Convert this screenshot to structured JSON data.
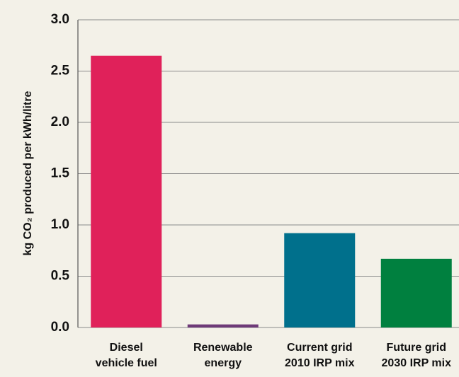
{
  "chart_data": {
    "type": "bar",
    "y_label": "kg CO₂ produced per kWh/litre",
    "categories": [
      [
        "Diesel",
        "vehicle fuel"
      ],
      [
        "Renewable",
        "energy"
      ],
      [
        "Current grid",
        "2010 IRP mix"
      ],
      [
        "Future grid",
        "2030 IRP mix"
      ]
    ],
    "values": [
      2.65,
      0.03,
      0.92,
      0.67
    ],
    "colors": [
      "#e0215a",
      "#6e3a78",
      "#00708c",
      "#00803f"
    ],
    "ylim": [
      0,
      3
    ],
    "yticks": [
      {
        "value": 0,
        "label": "0.0"
      },
      0.5,
      {
        "value": 1,
        "label": "1.0"
      },
      1.5,
      {
        "value": 2,
        "label": "2.0"
      },
      2.5,
      {
        "value": 3,
        "label": "3.0"
      }
    ],
    "grid": true
  }
}
